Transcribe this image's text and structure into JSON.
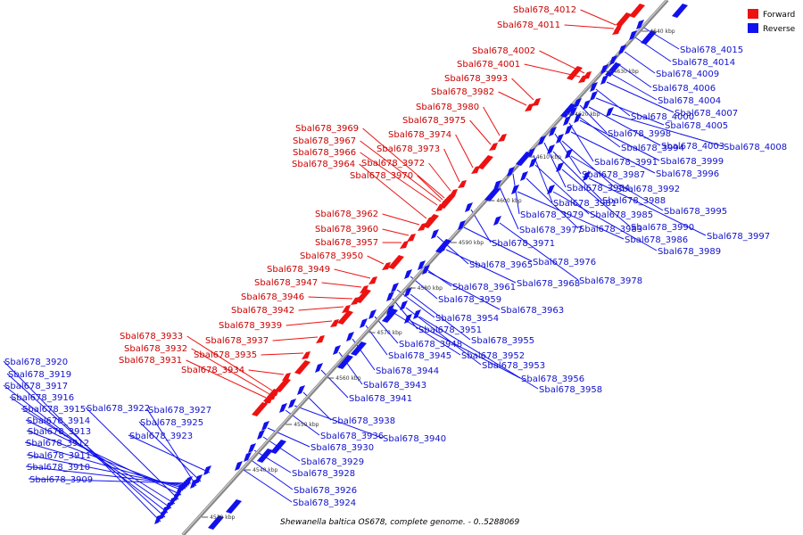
{
  "caption": "Shewanella baltica OS678, complete genome. - 0..5288069",
  "legend": [
    {
      "label": "Forward",
      "color": "#ee1111"
    },
    {
      "label": "Reverse",
      "color": "#1111ee"
    }
  ],
  "colors": {
    "forward": "#ee1111",
    "reverse": "#1111ee",
    "axis": "#808080"
  },
  "ticks": [
    "4530 kbp",
    "4540 kbp",
    "4550 kbp",
    "4560 kbp",
    "4570 kbp",
    "4580 kbp",
    "4590 kbp",
    "4600 kbp",
    "4610 kbp",
    "4620 kbp",
    "4630 kbp",
    "4640 kbp"
  ],
  "forward_genes": [
    "Sbal678_4012",
    "Sbal678_4011",
    "Sbal678_4002",
    "Sbal678_4001",
    "Sbal678_3993",
    "Sbal678_3982",
    "Sbal678_3980",
    "Sbal678_3975",
    "Sbal678_3969",
    "Sbal678_3974",
    "Sbal678_3967",
    "Sbal678_3973",
    "Sbal678_3966",
    "Sbal678_3972",
    "Sbal678_3964",
    "Sbal678_3970",
    "Sbal678_3962",
    "Sbal678_3960",
    "Sbal678_3957",
    "Sbal678_3950",
    "Sbal678_3949",
    "Sbal678_3947",
    "Sbal678_3946",
    "Sbal678_3942",
    "Sbal678_3939",
    "Sbal678_3933",
    "Sbal678_3937",
    "Sbal678_3932",
    "Sbal678_3935",
    "Sbal678_3931",
    "Sbal678_3934"
  ],
  "reverse_genes": [
    "Sbal678_4015",
    "Sbal678_4014",
    "Sbal678_4009",
    "Sbal678_4006",
    "Sbal678_4004",
    "Sbal678_4007",
    "Sbal678_4000",
    "Sbal678_4005",
    "Sbal678_3998",
    "Sbal678_3994",
    "Sbal678_4003",
    "Sbal678_4008",
    "Sbal678_3991",
    "Sbal678_3999",
    "Sbal678_3987",
    "Sbal678_3996",
    "Sbal678_3984",
    "Sbal678_3992",
    "Sbal678_3981",
    "Sbal678_3988",
    "Sbal678_3979",
    "Sbal678_3985",
    "Sbal678_3995",
    "Sbal678_3977",
    "Sbal678_3983",
    "Sbal678_3990",
    "Sbal678_3971",
    "Sbal678_3986",
    "Sbal678_3997",
    "Sbal678_3989",
    "Sbal678_3976",
    "Sbal678_3965",
    "Sbal678_3978",
    "Sbal678_3968",
    "Sbal678_3961",
    "Sbal678_3959",
    "Sbal678_3963",
    "Sbal678_3954",
    "Sbal678_3951",
    "Sbal678_3955",
    "Sbal678_3948",
    "Sbal678_3945",
    "Sbal678_3952",
    "Sbal678_3953",
    "Sbal678_3944",
    "Sbal678_3956",
    "Sbal678_3943",
    "Sbal678_3958",
    "Sbal678_3941",
    "Sbal678_3938",
    "Sbal678_3936",
    "Sbal678_3940",
    "Sbal678_3930",
    "Sbal678_3929",
    "Sbal678_3928",
    "Sbal678_3926",
    "Sbal678_3924",
    "Sbal678_3920",
    "Sbal678_3919",
    "Sbal678_3917",
    "Sbal678_3916",
    "Sbal678_3915",
    "Sbal678_3922",
    "Sbal678_3927",
    "Sbal678_3914",
    "Sbal678_3925",
    "Sbal678_3913",
    "Sbal678_3923",
    "Sbal678_3912",
    "Sbal678_3911",
    "Sbal678_3910",
    "Sbal678_3909"
  ]
}
